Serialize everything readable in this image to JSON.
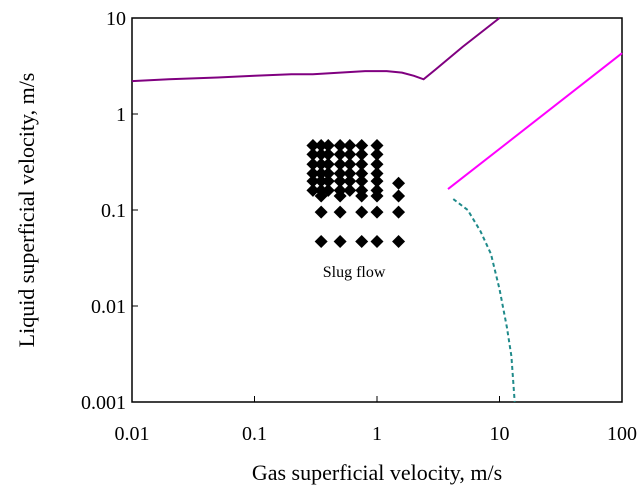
{
  "chart_data": {
    "type": "scatter",
    "title": "",
    "xlabel": "Gas superficial velocity, m/s",
    "ylabel": "Liquid superficial velocity, m/s",
    "x_scale": "log",
    "y_scale": "log",
    "xlim": [
      0.01,
      100
    ],
    "ylim": [
      0.001,
      10
    ],
    "x_ticks": [
      {
        "value": 0.01,
        "label": "0.01"
      },
      {
        "value": 0.1,
        "label": "0.1"
      },
      {
        "value": 1,
        "label": "1"
      },
      {
        "value": 10,
        "label": "10"
      },
      {
        "value": 100,
        "label": "100"
      }
    ],
    "y_ticks": [
      {
        "value": 0.001,
        "label": "0.001"
      },
      {
        "value": 0.01,
        "label": "0.01"
      },
      {
        "value": 0.1,
        "label": "0.1"
      },
      {
        "value": 1,
        "label": "1"
      },
      {
        "value": 10,
        "label": "10"
      }
    ],
    "grid": false,
    "legend": "none",
    "annotations": [
      {
        "text": "Slug flow",
        "x": 0.65,
        "y": 0.02
      }
    ],
    "points": {
      "marker": "diamond",
      "color": "#000000",
      "x": [
        0.3,
        0.35,
        0.4,
        0.5,
        0.6,
        0.75,
        1.0,
        0.3,
        0.35,
        0.4,
        0.5,
        0.6,
        0.75,
        1.0,
        0.3,
        0.35,
        0.4,
        0.5,
        0.6,
        0.75,
        1.0,
        0.3,
        0.35,
        0.4,
        0.5,
        0.6,
        0.75,
        1.0,
        0.3,
        0.35,
        0.4,
        0.5,
        0.6,
        0.75,
        1.0,
        0.3,
        0.35,
        0.4,
        0.5,
        0.6,
        0.75,
        1.0,
        1.5,
        0.35,
        0.5,
        0.75,
        1.0,
        1.5,
        0.35,
        0.5,
        0.75,
        1.0,
        1.5,
        0.35,
        0.5,
        0.75,
        1.0,
        1.5
      ],
      "y": [
        0.47,
        0.47,
        0.47,
        0.47,
        0.47,
        0.47,
        0.47,
        0.38,
        0.38,
        0.38,
        0.38,
        0.38,
        0.38,
        0.38,
        0.3,
        0.3,
        0.3,
        0.3,
        0.3,
        0.3,
        0.3,
        0.24,
        0.24,
        0.24,
        0.24,
        0.24,
        0.24,
        0.24,
        0.2,
        0.2,
        0.2,
        0.2,
        0.2,
        0.2,
        0.2,
        0.16,
        0.16,
        0.16,
        0.16,
        0.16,
        0.16,
        0.16,
        0.19,
        0.14,
        0.14,
        0.14,
        0.14,
        0.14,
        0.095,
        0.095,
        0.095,
        0.095,
        0.095,
        0.047,
        0.047,
        0.047,
        0.047,
        0.047
      ]
    },
    "lines": [
      {
        "color": "#800080",
        "style": "solid",
        "x": [
          0.01,
          0.02,
          0.05,
          0.1,
          0.2,
          0.3,
          0.5,
          0.8,
          1.2,
          1.6,
          2.0,
          2.4,
          3.0,
          5.0,
          10.0
        ],
        "y": [
          2.2,
          2.3,
          2.4,
          2.5,
          2.6,
          2.6,
          2.7,
          2.8,
          2.8,
          2.7,
          2.5,
          2.3,
          2.9,
          5.0,
          10.0
        ]
      },
      {
        "color": "#ff00ff",
        "style": "solid",
        "x": [
          3.8,
          100.0
        ],
        "y": [
          0.165,
          4.3
        ]
      },
      {
        "color": "#1f8a8a",
        "style": "dashed",
        "x": [
          4.2,
          5.5,
          7.0,
          8.5,
          10.0,
          11.5,
          12.5,
          13.3
        ],
        "y": [
          0.13,
          0.1,
          0.06,
          0.035,
          0.015,
          0.006,
          0.003,
          0.001
        ]
      }
    ]
  }
}
